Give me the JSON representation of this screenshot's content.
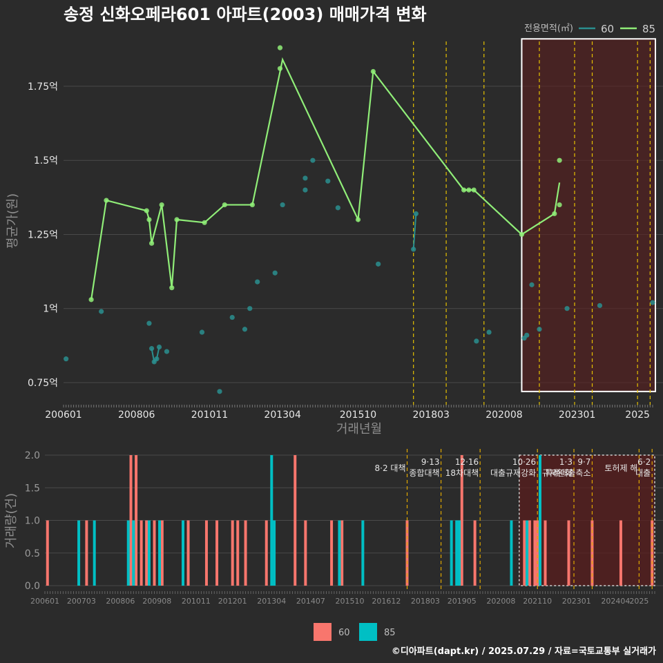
{
  "title": "송정 신화오페라601 아파트(2003) 매매가격 변화",
  "caption": "©디아파트(dapt.kr) / 2025.07.29 / 자료=국토교통부 실거래가",
  "colors": {
    "s60_price": "#2a8f8f",
    "s85_price": "#90ee78",
    "s60_vol": "#f8766d",
    "s85_vol": "#00bfc4",
    "policy": "#e6c200",
    "highlight": "#5a1e1e"
  },
  "chart_data": [
    {
      "type": "line",
      "title": "송정 신화오페라601 아파트(2003) 매매가격 변화",
      "xlabel": "거래년월",
      "ylabel": "평균가(원)",
      "x_ticks": [
        "200601",
        "200806",
        "201011",
        "201304",
        "201510",
        "201803",
        "202008",
        "202301",
        "2025"
      ],
      "y_ticks": [
        "0.75억",
        "1억",
        "1.25억",
        "1.5억",
        "1.75억"
      ],
      "ylim": [
        0.68,
        1.92
      ],
      "legend": {
        "title": "전용면적(㎡)",
        "items": [
          "60",
          "85"
        ],
        "position": "top-right"
      },
      "policy_dates": [
        "2017-08",
        "2018-09",
        "2019-12",
        "2021-10",
        "2022-12",
        "2023-07",
        "2025-01",
        "2025-06"
      ],
      "highlight": [
        "2021-03",
        "2025-07"
      ],
      "series": [
        {
          "name": "60",
          "line": [
            [
              "2008-12",
              0.865
            ],
            [
              "2009-01",
              0.82
            ],
            [
              "2009-02",
              0.83
            ],
            [
              "2009-03",
              0.87
            ],
            [
              "2017-08",
              1.2
            ],
            [
              "2017-09",
              1.32
            ]
          ],
          "points": [
            [
              "2006-02",
              0.83
            ],
            [
              "2007-04",
              0.99
            ],
            [
              "2008-11",
              0.95
            ],
            [
              "2008-12",
              0.865
            ],
            [
              "2009-01",
              0.82
            ],
            [
              "2009-02",
              0.83
            ],
            [
              "2009-03",
              0.87
            ],
            [
              "2009-06",
              0.855
            ],
            [
              "2010-08",
              0.92
            ],
            [
              "2011-03",
              0.72
            ],
            [
              "2011-08",
              0.97
            ],
            [
              "2012-01",
              0.93
            ],
            [
              "2012-03",
              1.0
            ],
            [
              "2012-06",
              1.09
            ],
            [
              "2013-01",
              1.12
            ],
            [
              "2013-04",
              1.35
            ],
            [
              "2014-01",
              1.4
            ],
            [
              "2014-01",
              1.44
            ],
            [
              "2014-04",
              1.5
            ],
            [
              "2014-10",
              1.43
            ],
            [
              "2015-02",
              1.34
            ],
            [
              "2016-06",
              1.15
            ],
            [
              "2017-08",
              1.2
            ],
            [
              "2017-09",
              1.32
            ],
            [
              "2019-09",
              0.89
            ],
            [
              "2020-02",
              0.92
            ],
            [
              "2021-04",
              0.9
            ],
            [
              "2021-05",
              0.91
            ],
            [
              "2021-07",
              1.08
            ],
            [
              "2021-10",
              0.93
            ],
            [
              "2022-09",
              1.0
            ],
            [
              "2023-10",
              1.01
            ],
            [
              "2025-07",
              1.02
            ]
          ]
        },
        {
          "name": "85",
          "line": [
            [
              "2006-12",
              1.03
            ],
            [
              "2007-06",
              1.365
            ],
            [
              "2008-10",
              1.33
            ],
            [
              "2008-11",
              1.3
            ],
            [
              "2008-12",
              1.22
            ],
            [
              "2009-04",
              1.35
            ],
            [
              "2009-08",
              1.07
            ],
            [
              "2009-10",
              1.3
            ],
            [
              "2010-09",
              1.29
            ],
            [
              "2011-05",
              1.35
            ],
            [
              "2012-04",
              1.35
            ],
            [
              "2013-04",
              1.84
            ],
            [
              "2015-10",
              1.3
            ],
            [
              "2016-04",
              1.8
            ],
            [
              "2019-04",
              1.4
            ],
            [
              "2019-06",
              1.4
            ],
            [
              "2019-08",
              1.4
            ],
            [
              "2021-03",
              1.25
            ],
            [
              "2022-04",
              1.32
            ],
            [
              "2022-06",
              1.425
            ]
          ],
          "points": [
            [
              "2006-12",
              1.03
            ],
            [
              "2007-06",
              1.365
            ],
            [
              "2008-10",
              1.33
            ],
            [
              "2008-11",
              1.3
            ],
            [
              "2008-12",
              1.22
            ],
            [
              "2009-04",
              1.35
            ],
            [
              "2009-08",
              1.07
            ],
            [
              "2009-10",
              1.3
            ],
            [
              "2010-09",
              1.29
            ],
            [
              "2011-05",
              1.35
            ],
            [
              "2012-04",
              1.35
            ],
            [
              "2013-03",
              1.81
            ],
            [
              "2013-03",
              1.88
            ],
            [
              "2015-10",
              1.3
            ],
            [
              "2016-04",
              1.8
            ],
            [
              "2019-04",
              1.4
            ],
            [
              "2019-06",
              1.4
            ],
            [
              "2019-08",
              1.4
            ],
            [
              "2021-03",
              1.25
            ],
            [
              "2022-04",
              1.32
            ],
            [
              "2022-06",
              1.35
            ],
            [
              "2022-06",
              1.5
            ]
          ]
        }
      ]
    },
    {
      "type": "bar",
      "xlabel": "",
      "ylabel": "거래량(건)",
      "x_ticks": [
        "200601",
        "200703",
        "200806",
        "200908",
        "201011",
        "201201",
        "201304",
        "201407",
        "201510",
        "201612",
        "201803",
        "201905",
        "202008",
        "202110",
        "202301",
        "202404",
        "2025"
      ],
      "y_ticks": [
        "0.0",
        "0.5",
        "1.0",
        "1.5",
        "2.0"
      ],
      "ylim": [
        0,
        2.1
      ],
      "legend": {
        "items": [
          "60",
          "85"
        ],
        "position": "bottom"
      },
      "policy_labels": [
        {
          "date": "2017-08",
          "lines": [
            "8·2 대책"
          ]
        },
        {
          "date": "2018-09",
          "lines": [
            "9·13",
            "종합대책"
          ]
        },
        {
          "date": "2019-12",
          "lines": [
            "12·16",
            "18차대책"
          ]
        },
        {
          "date": "2021-10",
          "lines": [
            "10·26",
            "대출규제강화"
          ]
        },
        {
          "date": "2022-12",
          "lines": [
            "1·3",
            "규제완화"
          ]
        },
        {
          "date": "2023-07",
          "lines": [
            "9·7",
            "특례대출축소"
          ]
        },
        {
          "date": "2025-01",
          "lines": [
            "토허제 해"
          ]
        },
        {
          "date": "2025-06",
          "lines": [
            "6·2",
            "대출"
          ]
        }
      ],
      "series": [
        {
          "name": "60",
          "bars": [
            [
              "2006-02",
              1
            ],
            [
              "2007-05",
              1
            ],
            [
              "2008-10",
              2
            ],
            [
              "2008-12",
              2
            ],
            [
              "2009-02",
              1
            ],
            [
              "2009-04",
              1
            ],
            [
              "2009-07",
              1
            ],
            [
              "2009-10",
              1
            ],
            [
              "2010-08",
              1
            ],
            [
              "2011-03",
              1
            ],
            [
              "2011-07",
              1
            ],
            [
              "2012-01",
              1
            ],
            [
              "2012-03",
              1
            ],
            [
              "2012-06",
              1
            ],
            [
              "2013-02",
              1
            ],
            [
              "2014-01",
              2
            ],
            [
              "2014-05",
              1
            ],
            [
              "2015-03",
              1
            ],
            [
              "2015-07",
              1
            ],
            [
              "2017-08",
              1
            ],
            [
              "2019-05",
              2
            ],
            [
              "2019-10",
              1
            ],
            [
              "2021-05",
              1
            ],
            [
              "2021-07",
              1
            ],
            [
              "2021-09",
              1
            ],
            [
              "2021-10",
              1
            ],
            [
              "2022-01",
              1
            ],
            [
              "2022-10",
              1
            ],
            [
              "2023-07",
              1
            ],
            [
              "2024-06",
              1
            ],
            [
              "2025-06",
              1
            ]
          ]
        },
        {
          "name": "85",
          "bars": [
            [
              "2007-02",
              1
            ],
            [
              "2007-08",
              1
            ],
            [
              "2008-09",
              1
            ],
            [
              "2008-11",
              1
            ],
            [
              "2009-05",
              1
            ],
            [
              "2009-09",
              1
            ],
            [
              "2010-06",
              1
            ],
            [
              "2013-04",
              2
            ],
            [
              "2013-05",
              1
            ],
            [
              "2015-06",
              1
            ],
            [
              "2016-03",
              1
            ],
            [
              "2019-01",
              1
            ],
            [
              "2019-03",
              1
            ],
            [
              "2019-04",
              1
            ],
            [
              "2020-12",
              1
            ],
            [
              "2021-06",
              1
            ],
            [
              "2021-11",
              2
            ]
          ]
        }
      ]
    }
  ]
}
